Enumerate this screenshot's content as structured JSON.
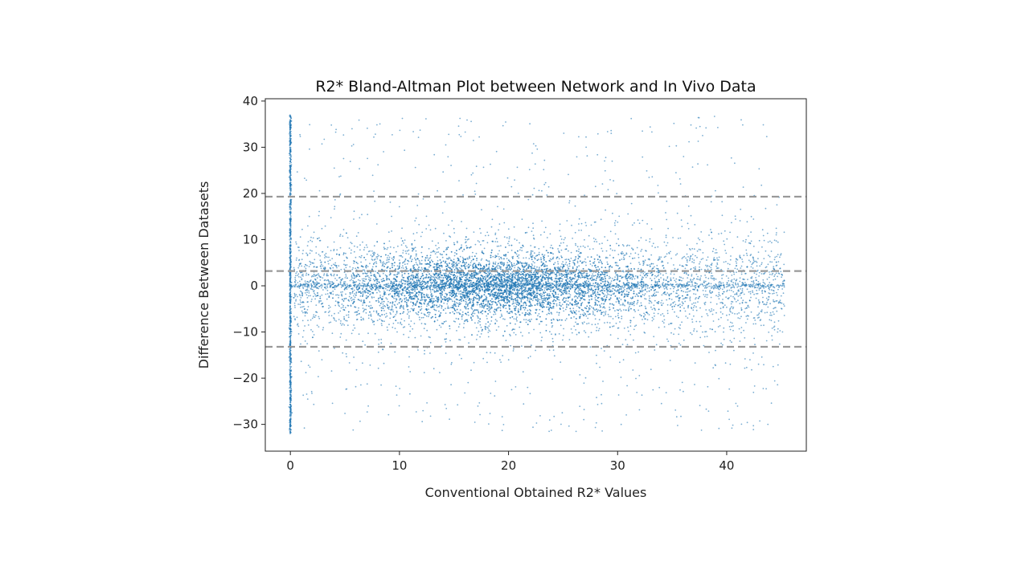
{
  "chart_data": {
    "type": "scatter",
    "title": "R2* Bland-Altman Plot between Network and In Vivo Data",
    "xlabel": "Conventional Obtained R2* Values",
    "ylabel": "Difference Between Datasets",
    "xlim": [
      -2.3,
      47.3
    ],
    "ylim": [
      -35.8,
      40.5
    ],
    "xticks": [
      0,
      10,
      20,
      30,
      40
    ],
    "yticks": [
      -30,
      -20,
      -10,
      0,
      10,
      20,
      30,
      40
    ],
    "grid": false,
    "legend": "none",
    "point_color": "#1f77b4",
    "reference_lines": [
      {
        "name": "upper limit of agreement",
        "y": 19.3
      },
      {
        "name": "mean difference",
        "y": 3.2
      },
      {
        "name": "lower limit of agreement",
        "y": -13.2
      }
    ],
    "reference_line_color": "#999999",
    "point_distribution": {
      "x_range": [
        0,
        45.3
      ],
      "y_range": [
        -32,
        37
      ],
      "vertical_cluster_x": 0,
      "dense_band_y": 0,
      "dense_center_x": 19
    }
  }
}
